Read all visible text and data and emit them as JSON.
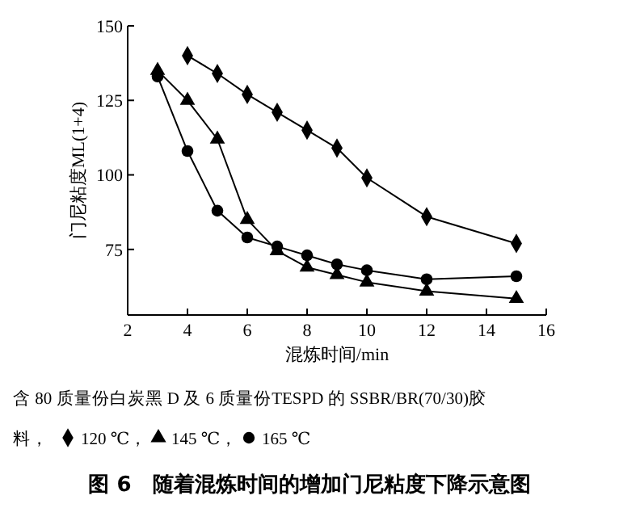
{
  "chart_data": {
    "type": "line",
    "title": "图 6　随着混炼时间的增加门尼粘度下降示意图",
    "xlabel": "混炼时间/min",
    "ylabel": "门尼粘度ML(1+4)",
    "xlim": [
      2,
      16
    ],
    "xticks": [
      2,
      4,
      6,
      8,
      10,
      12,
      14,
      16
    ],
    "ylim": [
      53,
      150
    ],
    "yticks": [
      75,
      100,
      125,
      150
    ],
    "x": [
      3,
      4,
      5,
      6,
      7,
      8,
      9,
      10,
      12,
      15
    ],
    "grid": false,
    "legend": "bottom",
    "line_style": "solid",
    "annotations": [
      "含 80 质量份白炭黑 D 及 6 质量份TESPD 的 SSBR/BR(70/30)胶料，",
      "，",
      "，"
    ],
    "series": [
      {
        "name": "120 ℃",
        "color": "#000000",
        "marker": "diamond",
        "values": [
          null,
          140,
          134,
          127,
          121,
          115,
          109,
          99,
          86,
          77
        ]
      },
      {
        "name": "145 ℃",
        "color": "#000000",
        "marker": "triangle",
        "values": [
          135,
          125,
          112,
          85,
          74.5,
          69,
          66.5,
          64,
          61,
          58.5
        ]
      },
      {
        "name": "165 ℃",
        "color": "#000000",
        "marker": "circle",
        "values": [
          133,
          108,
          88,
          79,
          76,
          73,
          70,
          68,
          65,
          66
        ]
      }
    ]
  }
}
